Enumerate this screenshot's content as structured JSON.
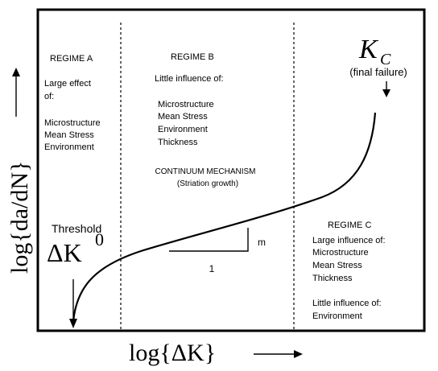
{
  "axes": {
    "x_label": "log{ΔK}",
    "y_label": "log{da/dN}"
  },
  "regime_a": {
    "title": "REGIME  A",
    "lines": [
      "Large effect",
      "of:",
      "",
      "Microstructure",
      "Mean Stress",
      "Environment"
    ]
  },
  "regime_b": {
    "title": "REGIME B",
    "lines": [
      "Little  influence  of:",
      "",
      "Microstructure",
      "Mean Stress",
      "Environment",
      "Thickness"
    ],
    "mechanism": "CONTINUUM MECHANISM",
    "mechanism_note": "(Striation growth)"
  },
  "regime_c": {
    "title": "REGIME C",
    "lines": [
      "Large influence of:",
      "Microstructure",
      "Mean Stress",
      "Thickness",
      "",
      "Little  influence  of:",
      "Environment"
    ]
  },
  "threshold": {
    "label": "Threshold",
    "symbol": "ΔK",
    "superscript": "0"
  },
  "kc": {
    "symbol": "K",
    "subscript": "C",
    "note": "(final failure)"
  },
  "slope": {
    "rise_label": "m",
    "run_label": "1"
  },
  "colors": {
    "line": "#000000",
    "background": "#ffffff"
  }
}
